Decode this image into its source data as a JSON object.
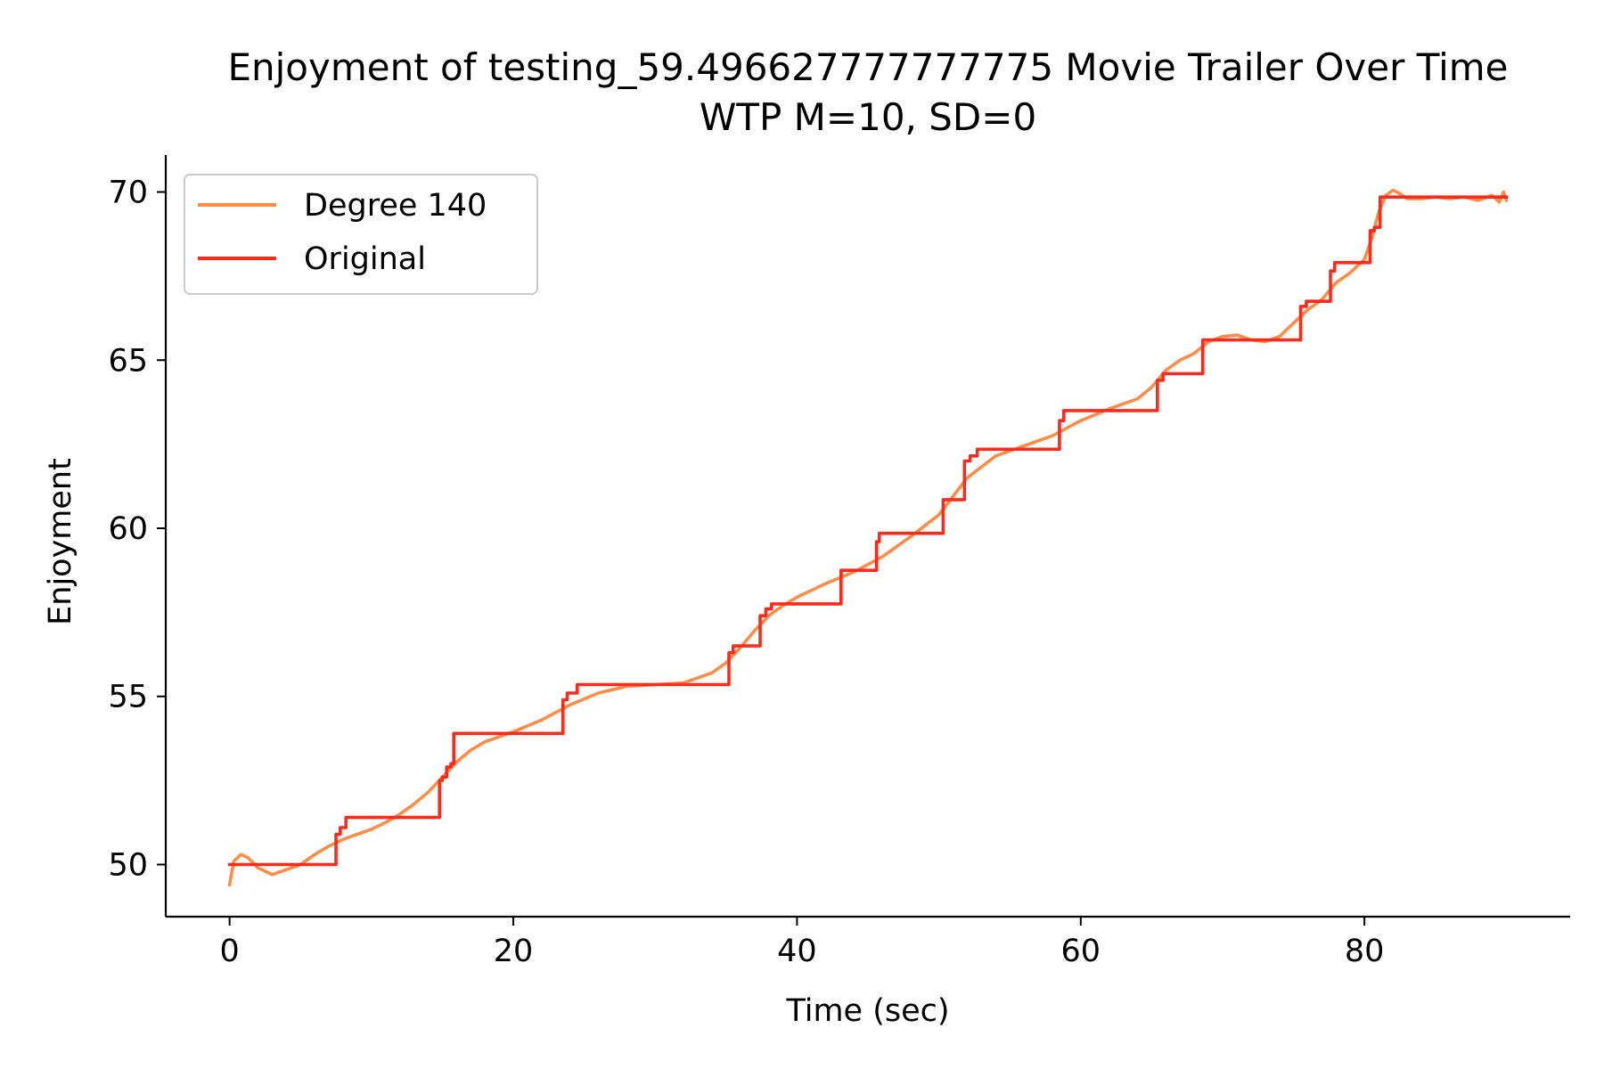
{
  "chart_data": {
    "type": "line",
    "title": "Enjoyment of testing_59.496627777777775 Movie Trailer Over Time",
    "subtitle": "WTP M=10, SD=0",
    "xlabel": "Time (sec)",
    "ylabel": "Enjoyment",
    "xlim": [
      -4.5,
      94.5
    ],
    "ylim": [
      48.45,
      71.1
    ],
    "xticks": [
      0,
      20,
      40,
      60,
      80
    ],
    "yticks": [
      50,
      55,
      60,
      65,
      70
    ],
    "grid": false,
    "legend": {
      "placement": "top-left",
      "entries": [
        "Degree 140",
        "Original"
      ]
    },
    "series": [
      {
        "name": "Degree 140",
        "color": "#fd8d48",
        "x": [
          0,
          0.3,
          0.8,
          1.3,
          2,
          3,
          4,
          5,
          6,
          7,
          8,
          9,
          10,
          11,
          12,
          13,
          14,
          15,
          16,
          17,
          18,
          20,
          22,
          24,
          26,
          28,
          30,
          32,
          34,
          35,
          36,
          37,
          38,
          39,
          40,
          42,
          44,
          46,
          48,
          50,
          52,
          54,
          56,
          58,
          60,
          62,
          64,
          65,
          66,
          67,
          68,
          69,
          70,
          71,
          72,
          73,
          74,
          75,
          76,
          77,
          78,
          79,
          80,
          80.5,
          81,
          81.5,
          82,
          82.5,
          83,
          84,
          85,
          86,
          87,
          88,
          89,
          89.5,
          89.8,
          90
        ],
        "values": [
          49.4,
          50.1,
          50.3,
          50.2,
          49.9,
          49.7,
          49.85,
          50.0,
          50.3,
          50.55,
          50.75,
          50.9,
          51.05,
          51.25,
          51.5,
          51.8,
          52.15,
          52.6,
          53.05,
          53.4,
          53.65,
          53.95,
          54.3,
          54.75,
          55.1,
          55.3,
          55.35,
          55.4,
          55.7,
          56.0,
          56.45,
          56.95,
          57.4,
          57.7,
          57.95,
          58.35,
          58.7,
          59.15,
          59.75,
          60.4,
          61.5,
          62.15,
          62.45,
          62.75,
          63.2,
          63.55,
          63.85,
          64.2,
          64.7,
          65.0,
          65.2,
          65.55,
          65.7,
          65.75,
          65.6,
          65.55,
          65.7,
          66.1,
          66.5,
          66.8,
          67.3,
          67.6,
          68.0,
          68.6,
          69.4,
          69.9,
          70.05,
          69.95,
          69.8,
          69.8,
          69.85,
          69.8,
          69.85,
          69.75,
          69.9,
          69.7,
          70.0,
          69.75
        ]
      },
      {
        "name": "Original",
        "color": "#fb2c1e",
        "x": [
          0,
          7.5,
          7.5,
          7.8,
          7.8,
          8.2,
          8.2,
          14.8,
          14.8,
          15.0,
          15.0,
          15.3,
          15.3,
          15.6,
          15.6,
          15.8,
          15.8,
          23.5,
          23.5,
          23.8,
          23.8,
          24.5,
          24.5,
          35.2,
          35.2,
          35.5,
          35.5,
          37.4,
          37.4,
          37.8,
          37.8,
          38.2,
          38.2,
          43.1,
          43.1,
          45.6,
          45.6,
          45.8,
          45.8,
          50.3,
          50.3,
          51.8,
          51.8,
          52.2,
          52.2,
          52.7,
          52.7,
          58.5,
          58.5,
          58.8,
          58.8,
          65.4,
          65.4,
          65.8,
          65.8,
          68.6,
          68.6,
          75.5,
          75.5,
          75.9,
          75.9,
          77.6,
          77.6,
          77.9,
          77.9,
          80.4,
          80.4,
          80.7,
          80.7,
          81.1,
          81.1,
          90
        ],
        "values": [
          50.0,
          50.0,
          50.9,
          50.9,
          51.1,
          51.1,
          51.4,
          51.4,
          52.5,
          52.5,
          52.6,
          52.6,
          52.9,
          52.9,
          53.0,
          53.0,
          53.9,
          53.9,
          54.9,
          54.9,
          55.1,
          55.1,
          55.35,
          55.35,
          56.3,
          56.3,
          56.5,
          56.5,
          57.4,
          57.4,
          57.6,
          57.6,
          57.75,
          57.75,
          58.75,
          58.75,
          59.6,
          59.6,
          59.85,
          59.85,
          60.85,
          60.85,
          62.0,
          62.0,
          62.15,
          62.15,
          62.35,
          62.35,
          63.2,
          63.2,
          63.5,
          63.5,
          64.4,
          64.4,
          64.6,
          64.6,
          65.6,
          65.6,
          66.6,
          66.6,
          66.75,
          66.75,
          67.65,
          67.65,
          67.9,
          67.9,
          68.85,
          68.85,
          68.95,
          68.95,
          69.85,
          69.85
        ]
      }
    ]
  }
}
